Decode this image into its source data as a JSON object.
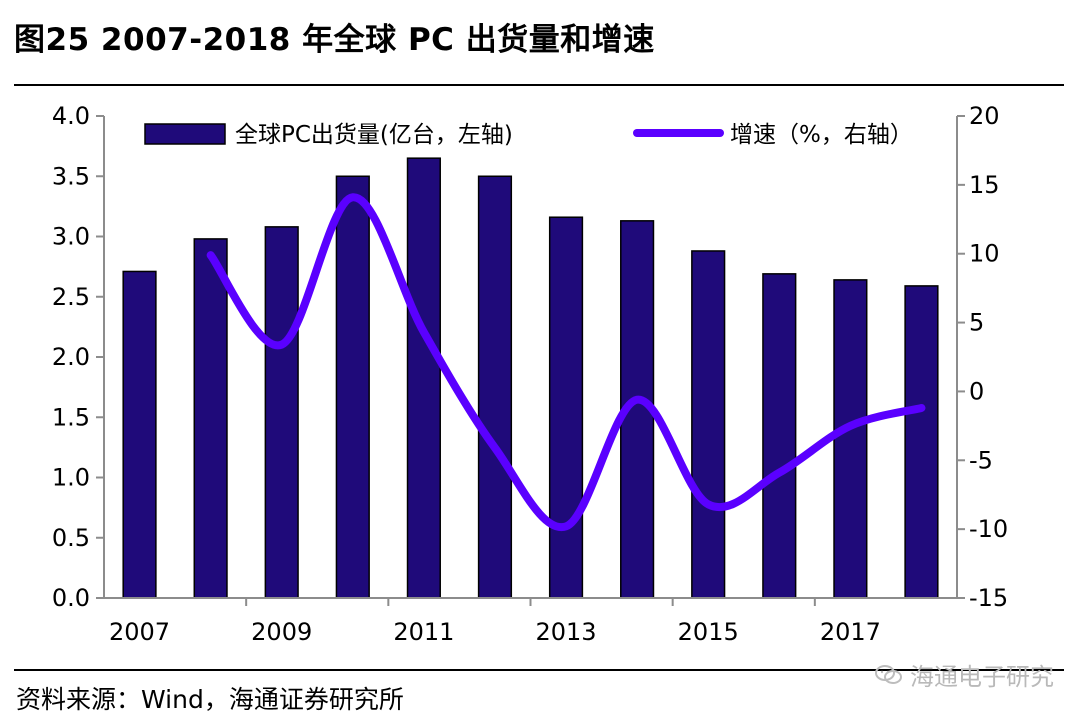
{
  "title": "图25  2007-2018 年全球 PC 出货量和增速",
  "source": "资料来源：Wind，海通证券研究所",
  "watermark": "海通电子研究",
  "chart_data": {
    "type": "bar",
    "x": [
      "2007",
      "2008",
      "2009",
      "2010",
      "2011",
      "2012",
      "2013",
      "2014",
      "2015",
      "2016",
      "2017",
      "2018"
    ],
    "x_tick_labels": [
      "2007",
      "2009",
      "2011",
      "2013",
      "2015",
      "2017"
    ],
    "series": [
      {
        "name": "全球PC出货量(亿台，左轴)",
        "type": "bar",
        "axis": "left",
        "color": "#1f0a7a",
        "values": [
          2.71,
          2.98,
          3.08,
          3.5,
          3.65,
          3.5,
          3.16,
          3.13,
          2.88,
          2.69,
          2.64,
          2.59
        ]
      },
      {
        "name": "增速（%，右轴）",
        "type": "line",
        "axis": "right",
        "color": "#5a00ff",
        "x": [
          "2008",
          "2009",
          "2010",
          "2011",
          "2012",
          "2013",
          "2014",
          "2015",
          "2016",
          "2017",
          "2018"
        ],
        "values": [
          9.9,
          3.4,
          14.1,
          4.3,
          -4.1,
          -9.8,
          -0.6,
          -8.2,
          -5.9,
          -2.5,
          -1.2
        ]
      }
    ],
    "y_left": {
      "ylim": [
        0,
        4
      ],
      "ticks": [
        0,
        0.5,
        1.0,
        1.5,
        2.0,
        2.5,
        3.0,
        3.5,
        4.0
      ],
      "tick_labels": [
        "0.0",
        "0.5",
        "1.0",
        "1.5",
        "2.0",
        "2.5",
        "3.0",
        "3.5",
        "4.0"
      ]
    },
    "y_right": {
      "ylim": [
        -15,
        20
      ],
      "ticks": [
        -15,
        -10,
        -5,
        0,
        5,
        10,
        15,
        20
      ],
      "tick_labels": [
        "-15",
        "-10",
        "-5",
        "0",
        "5",
        "10",
        "15",
        "20"
      ]
    },
    "grid": false,
    "legend": "top"
  }
}
